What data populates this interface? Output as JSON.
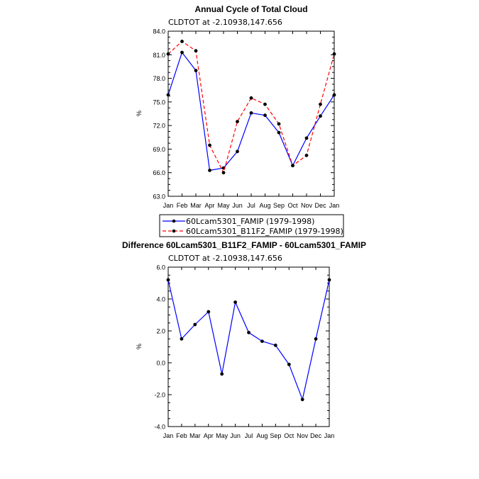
{
  "chart_data": [
    {
      "type": "line",
      "title": "Annual Cycle of Total Cloud",
      "subtitle": "CLDTOT at -2.10938,147.656",
      "ylabel": "%",
      "xlabel": "",
      "categories": [
        "Jan",
        "Feb",
        "Mar",
        "Apr",
        "May",
        "Jun",
        "Jul",
        "Aug",
        "Sep",
        "Oct",
        "Nov",
        "Dec",
        "Jan"
      ],
      "ylim": [
        63.0,
        84.0
      ],
      "yticks": [
        "63.0",
        "66.0",
        "69.0",
        "72.0",
        "75.0",
        "78.0",
        "81.0",
        "84.0"
      ],
      "series": [
        {
          "name": "60Lcam5301_FAMIP (1979-1998)",
          "color": "#0000ff",
          "dash": "solid",
          "values": [
            75.9,
            81.3,
            79.0,
            66.3,
            66.6,
            68.7,
            73.6,
            73.3,
            71.1,
            66.9,
            70.4,
            73.2,
            75.9
          ]
        },
        {
          "name": "60Lcam5301_B11F2_FAMIP (1979-1998)",
          "color": "#ff0000",
          "dash": "dashed",
          "values": [
            81.1,
            82.7,
            81.5,
            69.5,
            66.0,
            72.5,
            75.5,
            74.7,
            72.2,
            66.9,
            68.2,
            74.7,
            81.1
          ]
        }
      ],
      "legend_position": "below"
    },
    {
      "type": "line",
      "title": "Difference 60Lcam5301_B11F2_FAMIP - 60Lcam5301_FAMIP",
      "subtitle": "CLDTOT at -2.10938,147.656",
      "ylabel": "%",
      "xlabel": "",
      "categories": [
        "Jan",
        "Feb",
        "Mar",
        "Apr",
        "May",
        "Jun",
        "Jul",
        "Aug",
        "Sep",
        "Oct",
        "Nov",
        "Dec",
        "Jan"
      ],
      "ylim": [
        -4.0,
        6.0
      ],
      "yticks": [
        "-4.0",
        "-2.0",
        "0.0",
        "2.0",
        "4.0",
        "6.0"
      ],
      "series": [
        {
          "color": "#0000ff",
          "dash": "solid",
          "values": [
            5.2,
            1.5,
            2.4,
            3.2,
            -0.7,
            3.8,
            1.9,
            1.35,
            1.1,
            -0.1,
            -2.3,
            1.5,
            5.2
          ]
        }
      ]
    }
  ]
}
